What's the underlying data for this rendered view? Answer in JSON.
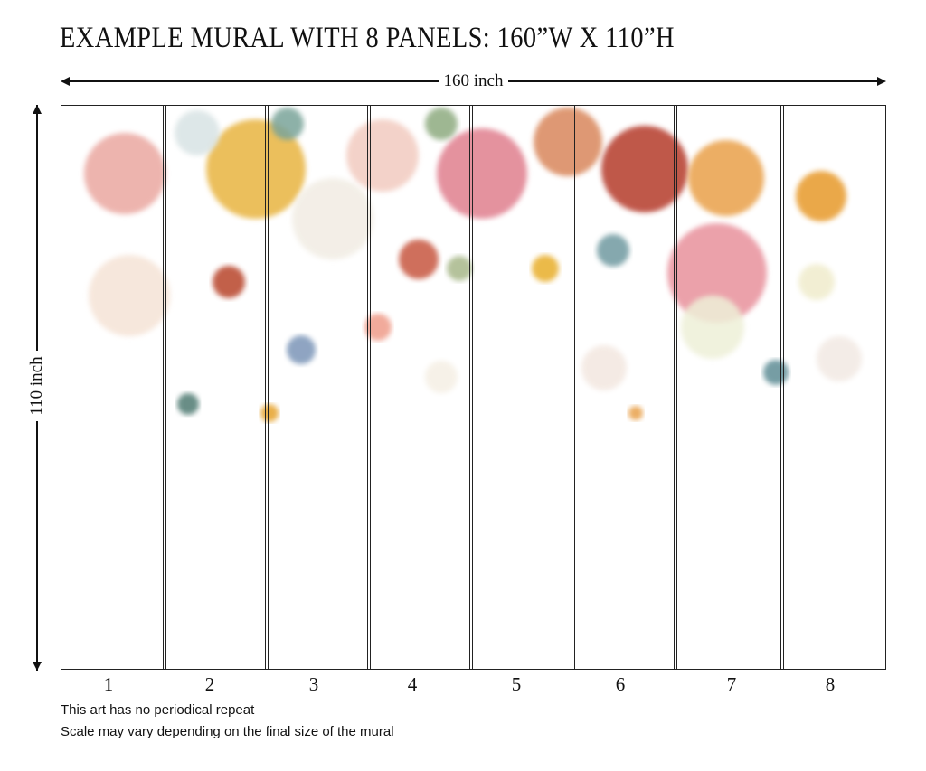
{
  "title": "EXAMPLE MURAL WITH 8 PANELS: 160”W X 110”H",
  "dimensions": {
    "width_label": "160 inch",
    "height_label": "110 inch"
  },
  "panels": [
    "1",
    "2",
    "3",
    "4",
    "5",
    "6",
    "7",
    "8"
  ],
  "notes": [
    "This art has no periodical repeat",
    "Scale may vary depending on the final size of the mural"
  ]
}
